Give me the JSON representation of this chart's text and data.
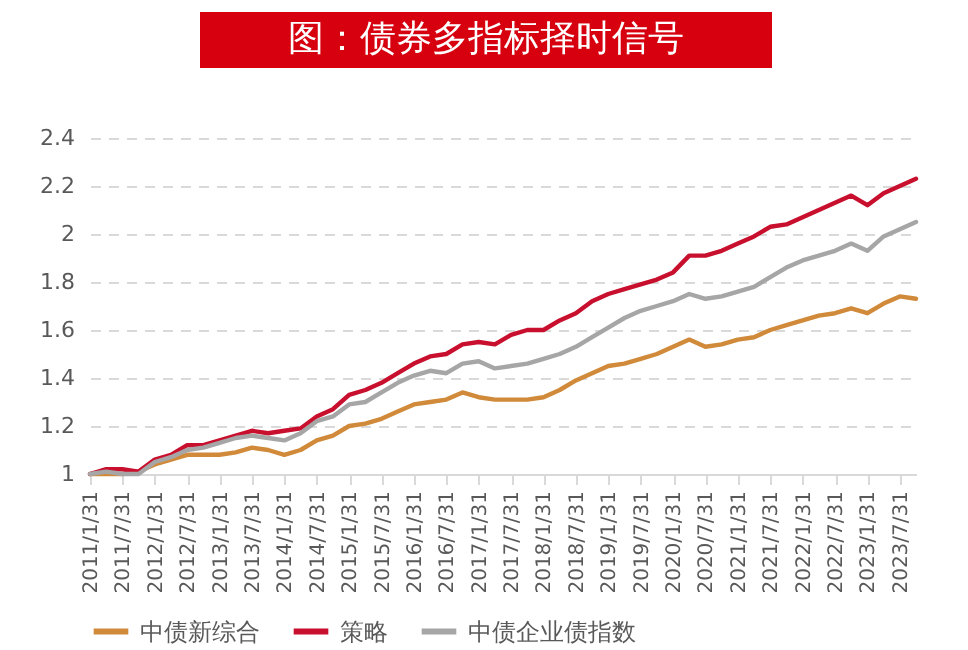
{
  "chart_data": {
    "type": "line",
    "title": "图：债券多指标择时信号",
    "categories": [
      "2011/1/31",
      null,
      "2011/7/31",
      null,
      "2012/1/31",
      null,
      "2012/7/31",
      null,
      "2013/1/31",
      null,
      "2013/7/31",
      null,
      "2014/1/31",
      null,
      "2014/7/31",
      null,
      "2015/1/31",
      null,
      "2015/7/31",
      null,
      "2016/1/31",
      null,
      "2016/7/31",
      null,
      "2017/1/31",
      null,
      "2017/7/31",
      null,
      "2018/1/31",
      null,
      "2018/7/31",
      null,
      "2019/1/31",
      null,
      "2019/7/31",
      null,
      "2020/1/31",
      null,
      "2020/7/31",
      null,
      "2021/1/31",
      null,
      "2021/7/31",
      null,
      "2022/1/31",
      null,
      "2022/7/31",
      null,
      "2023/1/31",
      null,
      "2023/7/31",
      null
    ],
    "series": [
      {
        "name": "中债新综合",
        "color": "#d08a3a",
        "values": [
          1.0,
          1.0,
          1.0,
          1.01,
          1.04,
          1.06,
          1.08,
          1.08,
          1.08,
          1.09,
          1.11,
          1.1,
          1.08,
          1.1,
          1.14,
          1.16,
          1.2,
          1.21,
          1.23,
          1.26,
          1.29,
          1.3,
          1.31,
          1.34,
          1.32,
          1.31,
          1.31,
          1.31,
          1.32,
          1.35,
          1.39,
          1.42,
          1.45,
          1.46,
          1.48,
          1.5,
          1.53,
          1.56,
          1.53,
          1.54,
          1.56,
          1.57,
          1.6,
          1.62,
          1.64,
          1.66,
          1.67,
          1.69,
          1.67,
          1.71,
          1.74,
          1.73
        ]
      },
      {
        "name": "策略",
        "color": "#c8102e",
        "values": [
          1.0,
          1.02,
          1.02,
          1.01,
          1.06,
          1.08,
          1.12,
          1.12,
          1.14,
          1.16,
          1.18,
          1.17,
          1.18,
          1.19,
          1.24,
          1.27,
          1.33,
          1.35,
          1.38,
          1.42,
          1.46,
          1.49,
          1.5,
          1.54,
          1.55,
          1.54,
          1.58,
          1.6,
          1.6,
          1.64,
          1.67,
          1.72,
          1.75,
          1.77,
          1.79,
          1.81,
          1.84,
          1.91,
          1.91,
          1.93,
          1.96,
          1.99,
          2.03,
          2.04,
          2.07,
          2.1,
          2.13,
          2.16,
          2.12,
          2.17,
          2.2,
          2.23
        ]
      },
      {
        "name": "中债企业债指数",
        "color": "#a6a6a6",
        "values": [
          1.0,
          1.01,
          1.0,
          1.0,
          1.05,
          1.07,
          1.1,
          1.11,
          1.13,
          1.15,
          1.16,
          1.15,
          1.14,
          1.17,
          1.22,
          1.24,
          1.29,
          1.3,
          1.34,
          1.38,
          1.41,
          1.43,
          1.42,
          1.46,
          1.47,
          1.44,
          1.45,
          1.46,
          1.48,
          1.5,
          1.53,
          1.57,
          1.61,
          1.65,
          1.68,
          1.7,
          1.72,
          1.75,
          1.73,
          1.74,
          1.76,
          1.78,
          1.82,
          1.86,
          1.89,
          1.91,
          1.93,
          1.96,
          1.93,
          1.99,
          2.02,
          2.05
        ]
      }
    ],
    "ylim": [
      1,
      2.4
    ],
    "yticks": [
      1,
      1.2,
      1.4,
      1.6,
      1.8,
      2,
      2.2,
      2.4
    ],
    "grid": "y",
    "legend": "bottom"
  }
}
